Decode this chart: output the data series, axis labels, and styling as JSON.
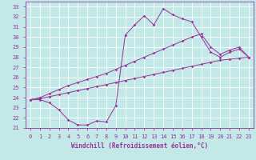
{
  "xlabel": "Windchill (Refroidissement éolien,°C)",
  "xlim": [
    -0.5,
    23.5
  ],
  "ylim": [
    21,
    33.5
  ],
  "xticks": [
    0,
    1,
    2,
    3,
    4,
    5,
    6,
    7,
    8,
    9,
    10,
    11,
    12,
    13,
    14,
    15,
    16,
    17,
    18,
    19,
    20,
    21,
    22,
    23
  ],
  "yticks": [
    21,
    22,
    23,
    24,
    25,
    26,
    27,
    28,
    29,
    30,
    31,
    32,
    33
  ],
  "bg_color": "#c2e8e8",
  "grid_color": "#ffffff",
  "line_color": "#993399",
  "line1_x": [
    0,
    1,
    2,
    3,
    4,
    5,
    6,
    7,
    8,
    9,
    10,
    11,
    12,
    13,
    14,
    15,
    16,
    17,
    18,
    19,
    20,
    21,
    22,
    23
  ],
  "line1_y": [
    23.8,
    23.8,
    23.5,
    22.8,
    21.8,
    21.3,
    21.3,
    21.7,
    21.6,
    23.2,
    30.2,
    31.2,
    32.1,
    31.2,
    32.8,
    32.2,
    31.8,
    31.5,
    30.0,
    28.5,
    28.0,
    28.5,
    28.8,
    28.0
  ],
  "line2_x": [
    0,
    1,
    2,
    3,
    4,
    5,
    6,
    7,
    8,
    9,
    10,
    11,
    12,
    13,
    14,
    15,
    16,
    17,
    18,
    19,
    20,
    21,
    22,
    23
  ],
  "line2_y": [
    23.8,
    23.9,
    24.1,
    24.3,
    24.5,
    24.7,
    24.9,
    25.1,
    25.3,
    25.5,
    25.7,
    25.9,
    26.1,
    26.3,
    26.5,
    26.7,
    26.9,
    27.1,
    27.3,
    27.5,
    27.7,
    27.8,
    27.9,
    28.0
  ],
  "line3_x": [
    0,
    1,
    2,
    3,
    4,
    5,
    6,
    7,
    8,
    9,
    10,
    11,
    12,
    13,
    14,
    15,
    16,
    17,
    18,
    19,
    20,
    21,
    22,
    23
  ],
  "line3_y": [
    23.8,
    24.0,
    24.4,
    24.8,
    25.2,
    25.5,
    25.8,
    26.1,
    26.4,
    26.8,
    27.2,
    27.6,
    28.0,
    28.4,
    28.8,
    29.2,
    29.6,
    30.0,
    30.3,
    29.0,
    28.3,
    28.7,
    29.0,
    28.0
  ],
  "marker_size": 1.8,
  "line_width": 0.7,
  "tick_fontsize": 5.0,
  "xlabel_fontsize": 5.5
}
